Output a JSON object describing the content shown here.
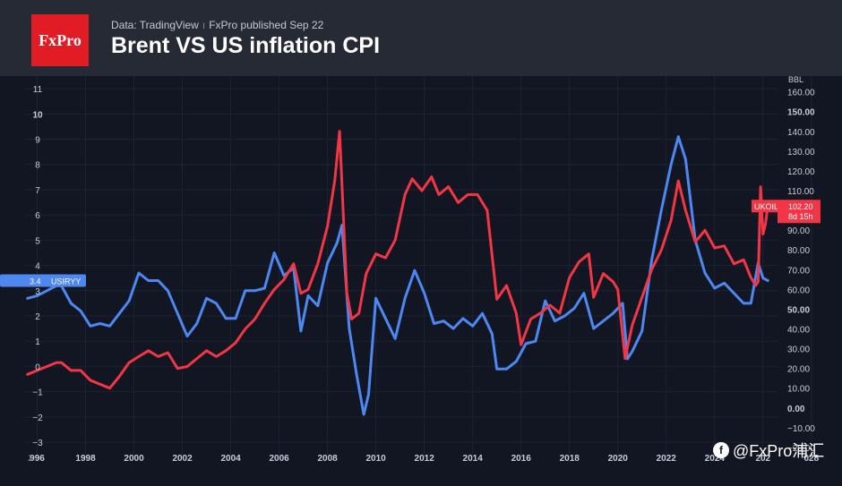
{
  "header": {
    "logo_text": "FxPro",
    "source": "Data: TradingView",
    "published": "FxPro published Sep 22",
    "title": "Brent VS US inflation CPI"
  },
  "watermark": {
    "text": "@FxPro浦汇",
    "icon": "f"
  },
  "chart_data": {
    "type": "line",
    "title": "Brent VS US inflation CPI",
    "xlim": [
      1995.5,
      2026.6
    ],
    "x_ticks": [
      "996",
      "1998",
      "2000",
      "2002",
      "2004",
      "2006",
      "2008",
      "2010",
      "2012",
      "2014",
      "2016",
      "2018",
      "2020",
      "2022",
      "2024",
      "202",
      "028"
    ],
    "left_axis": {
      "ticks": [
        "11",
        "10",
        "9",
        "8",
        "7",
        "6",
        "5",
        "4",
        "3",
        "2",
        "1",
        "0",
        "−1",
        "−2",
        "−3"
      ],
      "ylim": [
        -3.6,
        11.5
      ]
    },
    "right_axis": {
      "unit": "BBL",
      "ticks": [
        "160.00",
        "150.00",
        "140.00",
        "130.00",
        "120.00",
        "110.00",
        "100.00",
        "90.00",
        "80.00",
        "70.00",
        "60.00",
        "50.00",
        "40.00",
        "30.00",
        "20.00",
        "10.00",
        "0.00",
        "−10.00",
        "−20.00"
      ],
      "ylim": [
        -25,
        168
      ]
    },
    "series": [
      {
        "name": "USIRYY",
        "axis": "left",
        "color": "#4d88f2",
        "last_label": "3.4",
        "x": [
          1995.6,
          1996.0,
          1996.4,
          1996.8,
          1997.0,
          1997.4,
          1997.8,
          1998.2,
          1998.6,
          1999.0,
          1999.4,
          1999.8,
          2000.2,
          2000.6,
          2001.0,
          2001.4,
          2001.8,
          2002.2,
          2002.6,
          2003.0,
          2003.4,
          2003.8,
          2004.2,
          2004.6,
          2005.0,
          2005.4,
          2005.8,
          2006.2,
          2006.6,
          2006.9,
          2007.2,
          2007.6,
          2008.0,
          2008.4,
          2008.6,
          2008.9,
          2009.2,
          2009.5,
          2009.7,
          2010.0,
          2010.4,
          2010.8,
          2011.2,
          2011.6,
          2012.0,
          2012.4,
          2012.8,
          2013.2,
          2013.6,
          2014.0,
          2014.4,
          2014.8,
          2015.0,
          2015.4,
          2015.8,
          2016.2,
          2016.6,
          2017.0,
          2017.4,
          2017.8,
          2018.2,
          2018.6,
          2019.0,
          2019.4,
          2019.8,
          2020.2,
          2020.4,
          2020.6,
          2021.0,
          2021.4,
          2021.8,
          2022.2,
          2022.5,
          2022.8,
          2023.2,
          2023.6,
          2024.0,
          2024.4,
          2024.8,
          2025.2,
          2025.5,
          2025.8,
          2026.0,
          2026.2
        ],
        "y": [
          2.7,
          2.8,
          3.0,
          3.2,
          3.2,
          2.5,
          2.2,
          1.6,
          1.7,
          1.6,
          2.1,
          2.6,
          3.7,
          3.4,
          3.4,
          3.0,
          2.1,
          1.2,
          1.7,
          2.7,
          2.5,
          1.9,
          1.9,
          3.0,
          3.0,
          3.1,
          4.5,
          3.6,
          3.9,
          1.4,
          2.8,
          2.4,
          4.1,
          4.9,
          5.6,
          1.5,
          -0.3,
          -1.9,
          -1.1,
          2.7,
          1.9,
          1.1,
          2.7,
          3.8,
          2.9,
          1.7,
          1.8,
          1.5,
          1.9,
          1.6,
          2.1,
          1.3,
          -0.1,
          -0.1,
          0.2,
          0.9,
          1.0,
          2.6,
          1.8,
          2.0,
          2.3,
          2.9,
          1.5,
          1.8,
          2.1,
          2.5,
          0.3,
          0.6,
          1.4,
          4.2,
          6.2,
          8.0,
          9.1,
          8.2,
          5.0,
          3.7,
          3.1,
          3.3,
          2.9,
          2.5,
          2.5,
          4.1,
          3.5,
          3.4
        ]
      },
      {
        "name": "UKOIL",
        "axis": "right",
        "color": "#f23645",
        "last_label": "102.20",
        "countdown": "8d 15h",
        "x": [
          1995.6,
          1996.0,
          1996.4,
          1996.8,
          1997.0,
          1997.4,
          1997.8,
          1998.2,
          1998.6,
          1999.0,
          1999.4,
          1999.8,
          2000.2,
          2000.6,
          2001.0,
          2001.4,
          2001.8,
          2002.2,
          2002.6,
          2003.0,
          2003.4,
          2003.8,
          2004.2,
          2004.6,
          2005.0,
          2005.4,
          2005.8,
          2006.2,
          2006.6,
          2006.9,
          2007.2,
          2007.6,
          2008.0,
          2008.3,
          2008.5,
          2008.8,
          2009.0,
          2009.3,
          2009.6,
          2010.0,
          2010.4,
          2010.8,
          2011.2,
          2011.5,
          2011.9,
          2012.3,
          2012.6,
          2013.0,
          2013.4,
          2013.8,
          2014.2,
          2014.6,
          2015.0,
          2015.4,
          2015.8,
          2016.0,
          2016.4,
          2016.8,
          2017.2,
          2017.6,
          2018.0,
          2018.4,
          2018.8,
          2019.0,
          2019.4,
          2019.8,
          2020.0,
          2020.3,
          2020.6,
          2021.0,
          2021.4,
          2021.8,
          2022.2,
          2022.5,
          2022.8,
          2023.2,
          2023.6,
          2024.0,
          2024.4,
          2024.8,
          2025.2,
          2025.5,
          2025.7,
          2025.8,
          2025.9,
          2026.0,
          2026.1,
          2026.2
        ],
        "y": [
          17,
          19,
          21,
          23,
          23,
          19,
          19,
          14,
          12,
          10,
          16,
          23,
          26,
          29,
          26,
          28,
          20,
          21,
          25,
          29,
          26,
          29,
          33,
          40,
          45,
          53,
          60,
          65,
          73,
          58,
          60,
          73,
          92,
          115,
          140,
          58,
          45,
          48,
          68,
          78,
          76,
          85,
          108,
          116,
          110,
          117,
          108,
          112,
          104,
          108,
          108,
          100,
          55,
          62,
          48,
          32,
          45,
          48,
          52,
          48,
          66,
          74,
          78,
          56,
          68,
          64,
          60,
          25,
          42,
          56,
          70,
          80,
          95,
          115,
          100,
          84,
          90,
          81,
          82,
          73,
          75,
          66,
          62,
          64,
          112,
          88,
          93,
          102.2
        ]
      }
    ]
  }
}
